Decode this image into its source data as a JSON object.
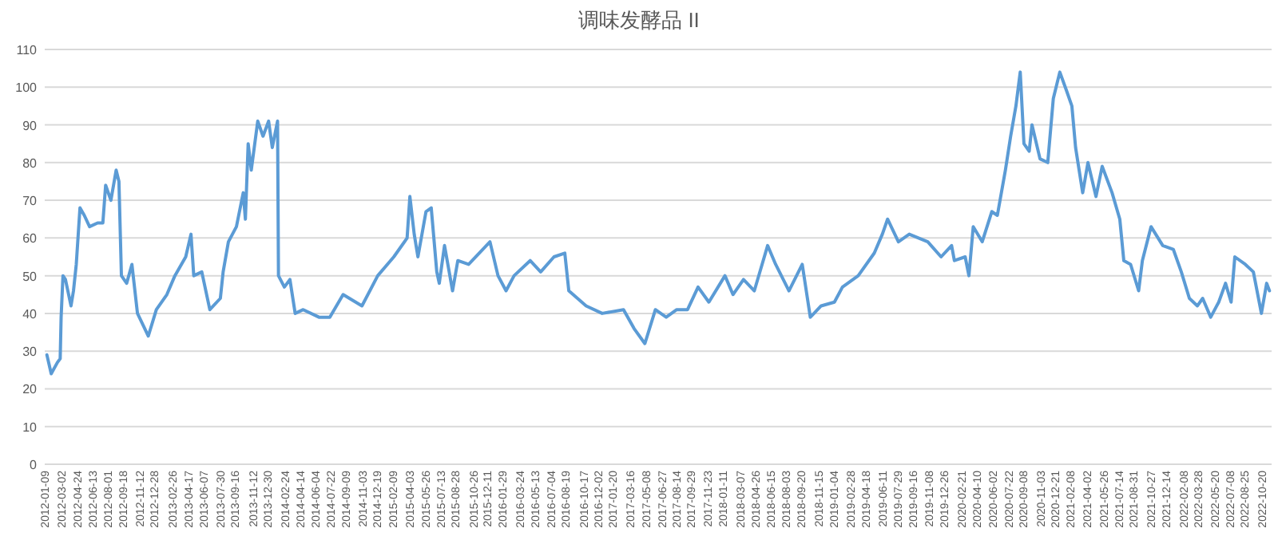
{
  "chart_data": {
    "type": "line",
    "title": "调味发酵品 II",
    "grid": "y",
    "marker": "none",
    "line_style": "solid",
    "ylim": [
      0,
      110
    ],
    "yticks": [
      0,
      10,
      20,
      30,
      40,
      50,
      60,
      70,
      80,
      90,
      100,
      110
    ],
    "xlim": [
      "2012-01-09",
      "2022-11-20"
    ],
    "xticks": [
      "2012-01-09",
      "2012-03-02",
      "2012-04-24",
      "2012-06-13",
      "2012-08-01",
      "2012-09-18",
      "2012-11-12",
      "2012-12-28",
      "2013-02-26",
      "2013-04-17",
      "2013-06-07",
      "2013-07-30",
      "2013-09-16",
      "2013-11-12",
      "2013-12-30",
      "2014-02-24",
      "2014-04-14",
      "2014-06-04",
      "2014-07-22",
      "2014-09-09",
      "2014-11-03",
      "2014-12-19",
      "2015-02-09",
      "2015-04-03",
      "2015-05-26",
      "2015-07-13",
      "2015-08-28",
      "2015-10-26",
      "2015-12-11",
      "2016-01-29",
      "2016-03-24",
      "2016-05-13",
      "2016-07-04",
      "2016-08-19",
      "2016-10-17",
      "2016-12-02",
      "2017-01-20",
      "2017-03-16",
      "2017-05-08",
      "2017-06-27",
      "2017-08-14",
      "2017-09-29",
      "2017-11-23",
      "2018-01-11",
      "2018-03-07",
      "2018-04-26",
      "2018-06-15",
      "2018-08-03",
      "2018-09-20",
      "2018-11-15",
      "2019-01-04",
      "2019-02-28",
      "2019-04-18",
      "2019-06-11",
      "2019-07-29",
      "2019-09-16",
      "2019-11-08",
      "2019-12-26",
      "2020-02-21",
      "2020-04-10",
      "2020-06-02",
      "2020-07-22",
      "2020-09-08",
      "2020-11-03",
      "2020-12-21",
      "2021-02-08",
      "2021-04-02",
      "2021-05-26",
      "2021-07-14",
      "2021-08-31",
      "2021-10-27",
      "2021-12-14",
      "2022-02-08",
      "2022-03-28",
      "2022-05-20",
      "2022-07-08",
      "2022-08-25",
      "2022-10-20"
    ],
    "series": [
      {
        "color": "#5b9bd5",
        "x": [
          "2012-01-16",
          "2012-01-30",
          "2012-02-19",
          "2012-02-28",
          "2012-03-02",
          "2012-03-08",
          "2012-03-16",
          "2012-04-03",
          "2012-04-11",
          "2012-04-20",
          "2012-05-02",
          "2012-05-16",
          "2012-06-02",
          "2012-06-28",
          "2012-07-15",
          "2012-07-24",
          "2012-08-10",
          "2012-08-27",
          "2012-09-05",
          "2012-09-13",
          "2012-09-30",
          "2012-10-17",
          "2012-11-04",
          "2012-12-09",
          "2013-01-04",
          "2013-02-07",
          "2013-03-05",
          "2013-04-09",
          "2013-04-26",
          "2013-05-05",
          "2013-05-31",
          "2013-06-26",
          "2013-07-30",
          "2013-08-08",
          "2013-08-25",
          "2013-09-20",
          "2013-10-12",
          "2013-10-19",
          "2013-10-28",
          "2013-11-07",
          "2013-11-28",
          "2013-12-15",
          "2014-01-02",
          "2014-01-14",
          "2014-01-31",
          "2014-02-03",
          "2014-02-22",
          "2014-03-12",
          "2014-03-29",
          "2014-04-24",
          "2014-06-14",
          "2014-07-19",
          "2014-08-31",
          "2014-10-31",
          "2014-12-21",
          "2015-02-11",
          "2015-03-26",
          "2015-04-04",
          "2015-04-18",
          "2015-04-30",
          "2015-05-26",
          "2015-06-12",
          "2015-06-30",
          "2015-07-08",
          "2015-07-25",
          "2015-08-20",
          "2015-09-06",
          "2015-10-11",
          "2015-12-19",
          "2016-01-14",
          "2016-02-09",
          "2016-03-06",
          "2016-04-27",
          "2016-05-31",
          "2016-07-13",
          "2016-08-17",
          "2016-08-30",
          "2016-10-25",
          "2016-12-16",
          "2017-02-23",
          "2017-03-29",
          "2017-05-03",
          "2017-06-06",
          "2017-07-11",
          "2017-08-14",
          "2017-09-18",
          "2017-10-22",
          "2017-11-26",
          "2018-01-17",
          "2018-02-12",
          "2018-03-18",
          "2018-04-22",
          "2018-06-04",
          "2018-06-30",
          "2018-08-12",
          "2018-09-24",
          "2018-10-20",
          "2018-11-24",
          "2019-01-06",
          "2019-02-01",
          "2019-03-24",
          "2019-05-15",
          "2019-06-10",
          "2019-06-27",
          "2019-08-01",
          "2019-09-05",
          "2019-11-04",
          "2019-12-17",
          "2020-01-20",
          "2020-01-29",
          "2020-03-04",
          "2020-03-16",
          "2020-03-30",
          "2020-04-28",
          "2020-05-29",
          "2020-06-16",
          "2020-07-12",
          "2020-07-29",
          "2020-08-15",
          "2020-08-29",
          "2020-09-10",
          "2020-09-27",
          "2020-10-06",
          "2020-11-01",
          "2020-11-26",
          "2020-12-14",
          "2021-01-04",
          "2021-01-26",
          "2021-02-12",
          "2021-02-24",
          "2021-03-19",
          "2021-04-05",
          "2021-05-01",
          "2021-05-21",
          "2021-06-22",
          "2021-07-17",
          "2021-07-30",
          "2021-08-21",
          "2021-09-16",
          "2021-09-28",
          "2021-10-26",
          "2021-12-03",
          "2022-01-06",
          "2022-02-01",
          "2022-02-27",
          "2022-03-25",
          "2022-04-11",
          "2022-05-07",
          "2022-06-02",
          "2022-06-24",
          "2022-07-12",
          "2022-07-24",
          "2022-08-27",
          "2022-09-22",
          "2022-10-18",
          "2022-11-04",
          "2022-11-13"
        ],
        "values": [
          29,
          24,
          27,
          28,
          39,
          50,
          49,
          42,
          46,
          53,
          68,
          66,
          63,
          64,
          64,
          74,
          70,
          78,
          75,
          50,
          48,
          53,
          40,
          34,
          41,
          45,
          50,
          55,
          61,
          50,
          51,
          41,
          44,
          51,
          59,
          63,
          72,
          65,
          85,
          78,
          91,
          87,
          91,
          84,
          91,
          50,
          47,
          49,
          40,
          41,
          39,
          39,
          45,
          42,
          50,
          55,
          60,
          71,
          61,
          55,
          67,
          68,
          51,
          48,
          58,
          46,
          54,
          53,
          59,
          50,
          46,
          50,
          54,
          51,
          55,
          56,
          46,
          42,
          40,
          41,
          36,
          32,
          41,
          39,
          41,
          41,
          47,
          43,
          50,
          45,
          49,
          46,
          58,
          53,
          46,
          53,
          39,
          42,
          43,
          47,
          50,
          56,
          61,
          65,
          59,
          61,
          59,
          55,
          58,
          54,
          55,
          50,
          63,
          59,
          67,
          66,
          78,
          87,
          95,
          104,
          85,
          83,
          90,
          81,
          80,
          97,
          104,
          99,
          95,
          84,
          72,
          80,
          71,
          79,
          72,
          65,
          54,
          53,
          46,
          54,
          63,
          58,
          57,
          51,
          44,
          42,
          44,
          39,
          43,
          48,
          43,
          55,
          53,
          51,
          40,
          48,
          46
        ]
      }
    ]
  }
}
